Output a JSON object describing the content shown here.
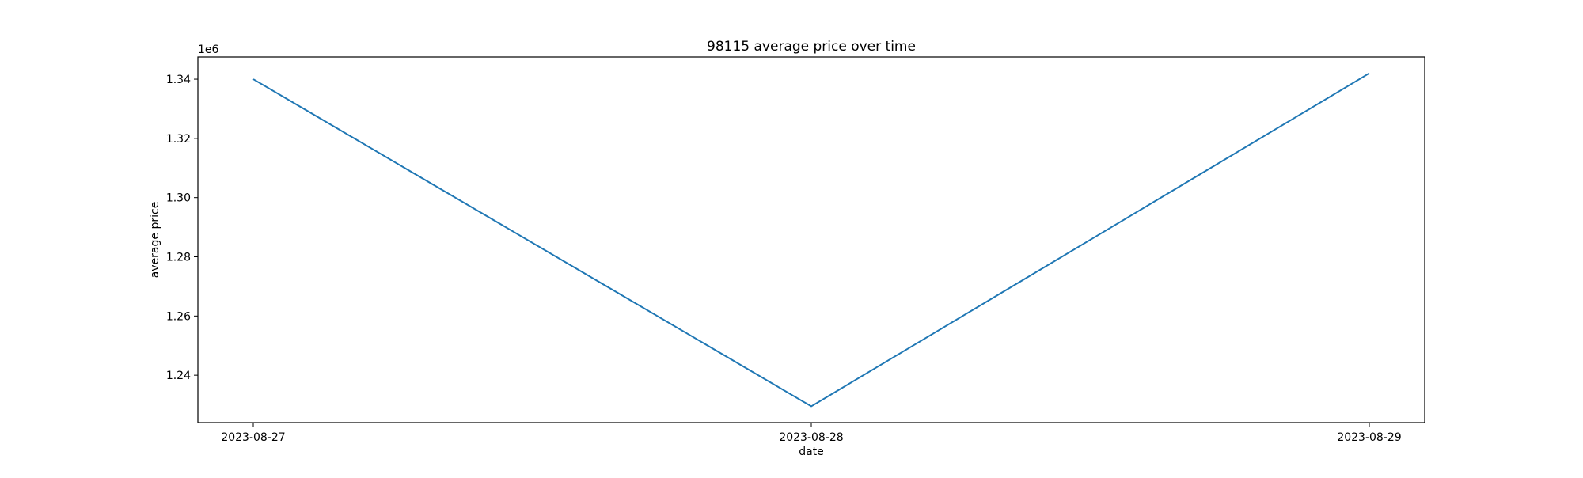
{
  "chart_data": {
    "type": "line",
    "title": "98115 average price over time",
    "xlabel": "date",
    "ylabel": "average price",
    "y_offset_label": "1e6",
    "y_scale_factor": 1000000,
    "x": [
      "2023-08-27",
      "2023-08-28",
      "2023-08-29"
    ],
    "series": [
      {
        "values": [
          1340000,
          1229500,
          1342000
        ],
        "color": "#1f77b4"
      }
    ],
    "x_ticks": [
      "2023-08-27",
      "2023-08-28",
      "2023-08-29"
    ],
    "y_ticks": [
      1.24,
      1.26,
      1.28,
      1.3,
      1.32,
      1.34
    ],
    "y_tick_labels": [
      "1.24",
      "1.26",
      "1.28",
      "1.30",
      "1.32",
      "1.34"
    ],
    "ylim": [
      1224000,
      1347500
    ],
    "grid": false,
    "legend": "none"
  }
}
